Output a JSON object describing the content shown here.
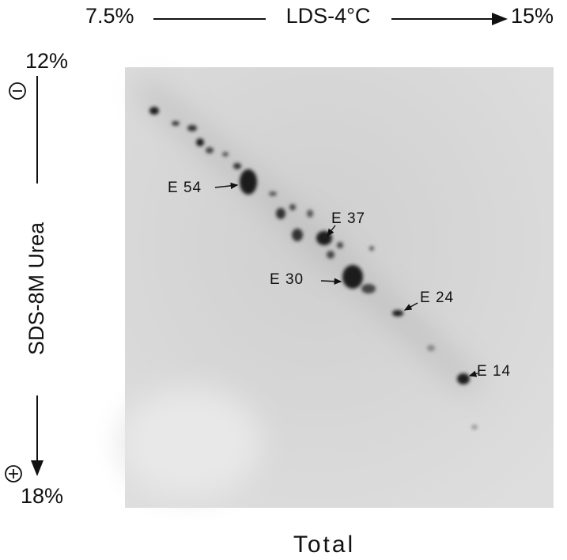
{
  "top_axis": {
    "left": "7.5%",
    "label": "LDS-4°C",
    "right": "15%"
  },
  "left_axis": {
    "top": "12%",
    "label": "SDS-8M Urea",
    "bottom": "18%"
  },
  "spots": [
    {
      "label": "E 54"
    },
    {
      "label": "E 37"
    },
    {
      "label": "E 30"
    },
    {
      "label": "E 24"
    },
    {
      "label": "E 14"
    }
  ],
  "caption": "Total"
}
